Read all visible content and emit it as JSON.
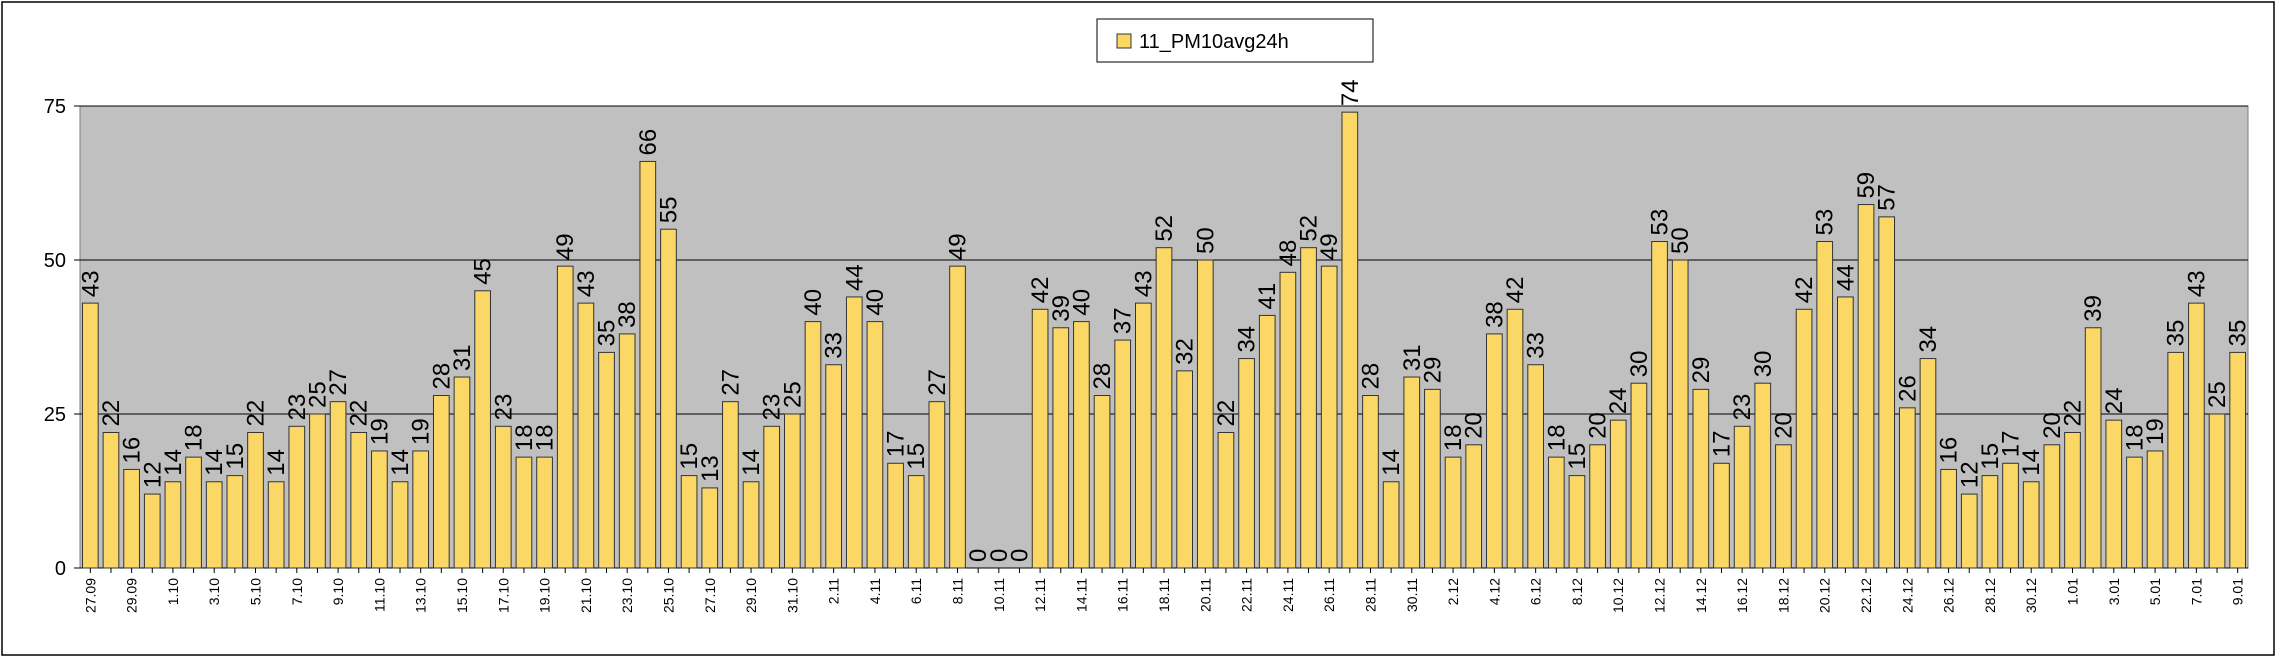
{
  "chart_data": {
    "type": "bar",
    "series": [
      {
        "name": "11_PM10avg24h",
        "color": "#fbd766",
        "values": [
          43,
          22,
          16,
          12,
          14,
          18,
          14,
          15,
          22,
          14,
          23,
          25,
          27,
          22,
          19,
          14,
          19,
          28,
          31,
          45,
          23,
          18,
          18,
          49,
          43,
          35,
          38,
          66,
          55,
          15,
          13,
          27,
          14,
          23,
          25,
          40,
          33,
          44,
          40,
          17,
          15,
          27,
          49,
          0,
          0,
          0,
          42,
          39,
          40,
          28,
          37,
          43,
          52,
          32,
          50,
          22,
          34,
          41,
          48,
          52,
          49,
          74,
          28,
          14,
          31,
          29,
          18,
          20,
          38,
          42,
          33,
          18,
          15,
          20,
          24,
          30,
          53,
          50,
          29,
          17,
          23,
          30,
          20,
          42,
          53,
          44,
          59,
          57,
          26,
          34,
          16,
          12,
          15,
          17,
          14,
          20,
          22,
          39,
          24,
          18,
          19,
          35,
          43,
          25,
          35
        ]
      }
    ],
    "categories": [
      "27.09",
      null,
      "29.09",
      null,
      "1.10",
      null,
      "3.10",
      null,
      "5.10",
      null,
      "7.10",
      null,
      "9.10",
      null,
      "11.10",
      null,
      "13.10",
      null,
      "15.10",
      null,
      "17.10",
      null,
      "19.10",
      null,
      "21.10",
      null,
      "23.10",
      null,
      "25.10",
      null,
      "27.10",
      null,
      "29.10",
      null,
      "31.10",
      null,
      "2.11",
      null,
      "4.11",
      null,
      "6.11",
      null,
      "8.11",
      null,
      "10.11",
      null,
      "12.11",
      null,
      "14.11",
      null,
      "16.11",
      null,
      "18.11",
      null,
      "20.11",
      null,
      "22.11",
      null,
      "24.11",
      null,
      "26.11",
      null,
      "28.11",
      null,
      "30.11",
      null,
      "2.12",
      null,
      "4.12",
      null,
      "6.12",
      null,
      "8.12",
      null,
      "10.12",
      null,
      "12.12",
      null,
      "14.12",
      null,
      "16.12",
      null,
      "18.12",
      null,
      "20.12",
      null,
      "22.12",
      null,
      "24.12",
      null,
      "26.12",
      null,
      "28.12",
      null,
      "30.12",
      null,
      "1.01",
      null,
      "3.01",
      null,
      "5.01",
      null,
      "7.01",
      null,
      "9.01"
    ],
    "ylim": [
      0,
      75
    ],
    "yticks": [
      0,
      25,
      50,
      75
    ],
    "grid": true,
    "legend": "top"
  }
}
